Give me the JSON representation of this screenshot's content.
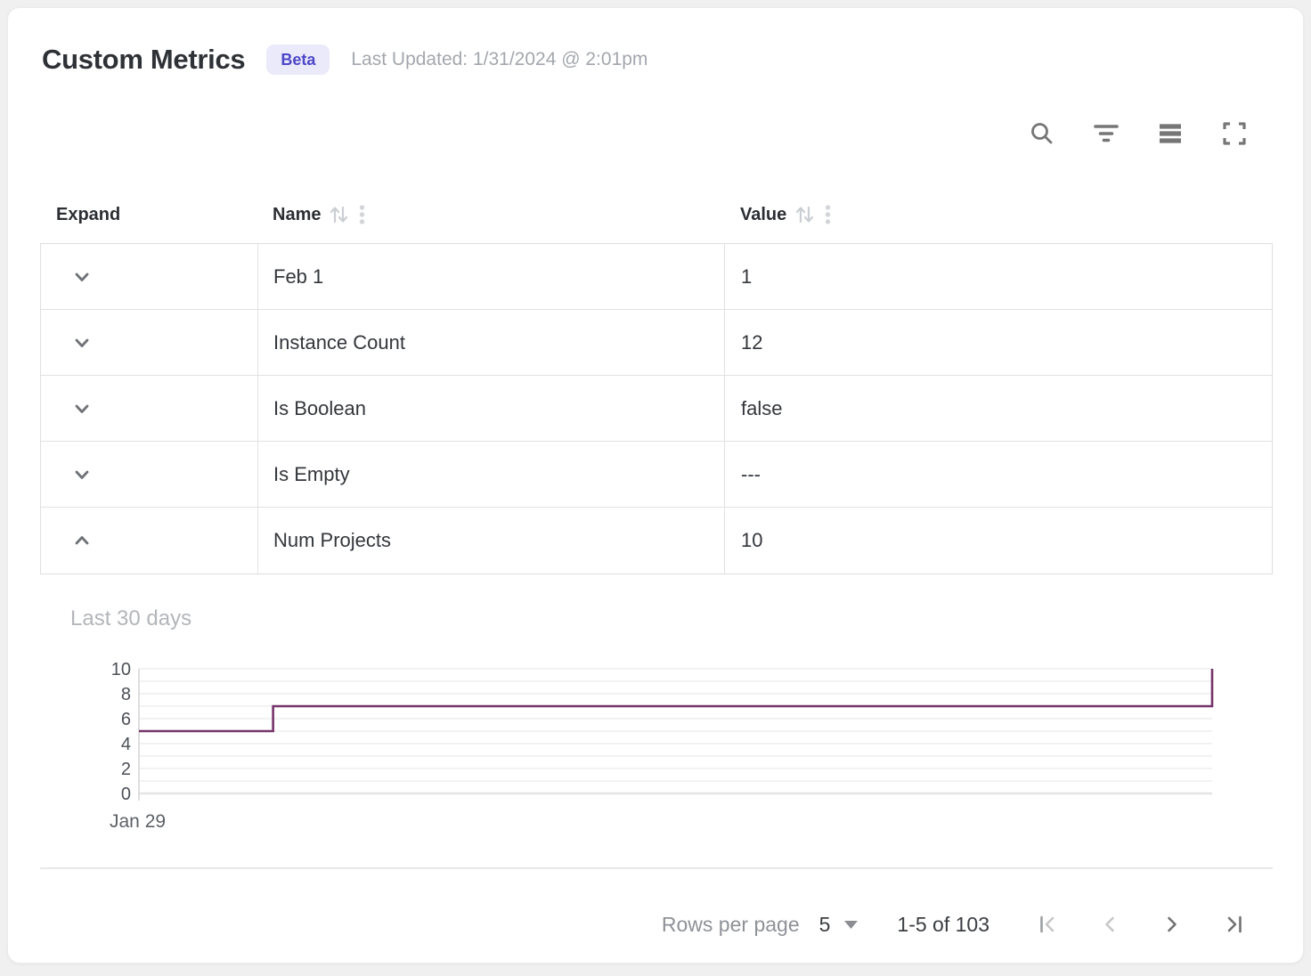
{
  "header": {
    "title": "Custom Metrics",
    "badge": "Beta",
    "last_updated": "Last Updated: 1/31/2024 @ 2:01pm"
  },
  "toolbar": {
    "icons": [
      "search",
      "filter",
      "density",
      "fullscreen"
    ]
  },
  "table": {
    "columns": [
      {
        "label": "Expand",
        "sortable": false
      },
      {
        "label": "Name",
        "sortable": true
      },
      {
        "label": "Value",
        "sortable": true
      }
    ],
    "rows": [
      {
        "name": "Feb 1",
        "value": "1",
        "expanded": false
      },
      {
        "name": "Instance Count",
        "value": "12",
        "expanded": false
      },
      {
        "name": "Is Boolean",
        "value": "false",
        "expanded": false
      },
      {
        "name": "Is Empty",
        "value": "---",
        "expanded": false
      },
      {
        "name": "Num Projects",
        "value": "10",
        "expanded": true
      }
    ]
  },
  "detail_panel": {
    "title": "Last 30 days",
    "metric": "Num Projects"
  },
  "chart_data": {
    "type": "line",
    "interpolation": "step-after",
    "title": "Last 30 days",
    "series": [
      {
        "name": "Num Projects",
        "points": [
          [
            0,
            5
          ],
          [
            3.75,
            7
          ],
          [
            30,
            10
          ]
        ]
      }
    ],
    "xlim": [
      0,
      30
    ],
    "ylim": [
      0,
      10
    ],
    "yticks": [
      0,
      2,
      4,
      6,
      8,
      10
    ],
    "grid_step": 1,
    "x_tick_labels": [
      "Jan 29"
    ],
    "legend": "none",
    "line_color": "#76346a"
  },
  "footer": {
    "rows_per_page_label": "Rows per page",
    "rows_per_page_value": "5",
    "range_label": "1-5 of 103",
    "pagination": {
      "first_disabled": true,
      "prev_disabled": true,
      "next_disabled": false,
      "last_disabled": false
    }
  },
  "colors": {
    "badge_bg": "#eaeafb",
    "badge_fg": "#4e47c8",
    "chart_line": "#76346a",
    "border": "#e2e2e2"
  }
}
